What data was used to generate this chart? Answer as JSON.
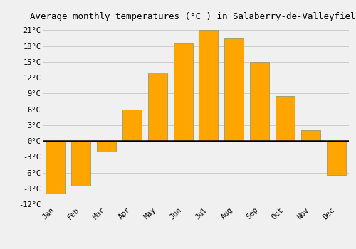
{
  "title": "Average monthly temperatures (°C ) in Salaberry-de-Valleyfield",
  "months": [
    "Jan",
    "Feb",
    "Mar",
    "Apr",
    "May",
    "Jun",
    "Jul",
    "Aug",
    "Sep",
    "Oct",
    "Nov",
    "Dec"
  ],
  "values": [
    -10,
    -8.5,
    -2,
    6,
    13,
    18.5,
    21,
    19.5,
    15,
    8.5,
    2,
    -6.5
  ],
  "bar_color": "#FFA500",
  "bar_edge_color": "#999966",
  "ylim": [
    -12,
    22
  ],
  "yticks": [
    -12,
    -9,
    -6,
    -3,
    0,
    3,
    6,
    9,
    12,
    15,
    18,
    21
  ],
  "ylabel_suffix": "°C",
  "background_color": "#f0f0f0",
  "plot_bg_color": "#f0f0f0",
  "grid_color": "#cccccc",
  "title_fontsize": 9,
  "tick_fontsize": 7.5,
  "zero_line_color": "#000000",
  "bar_width": 0.75
}
